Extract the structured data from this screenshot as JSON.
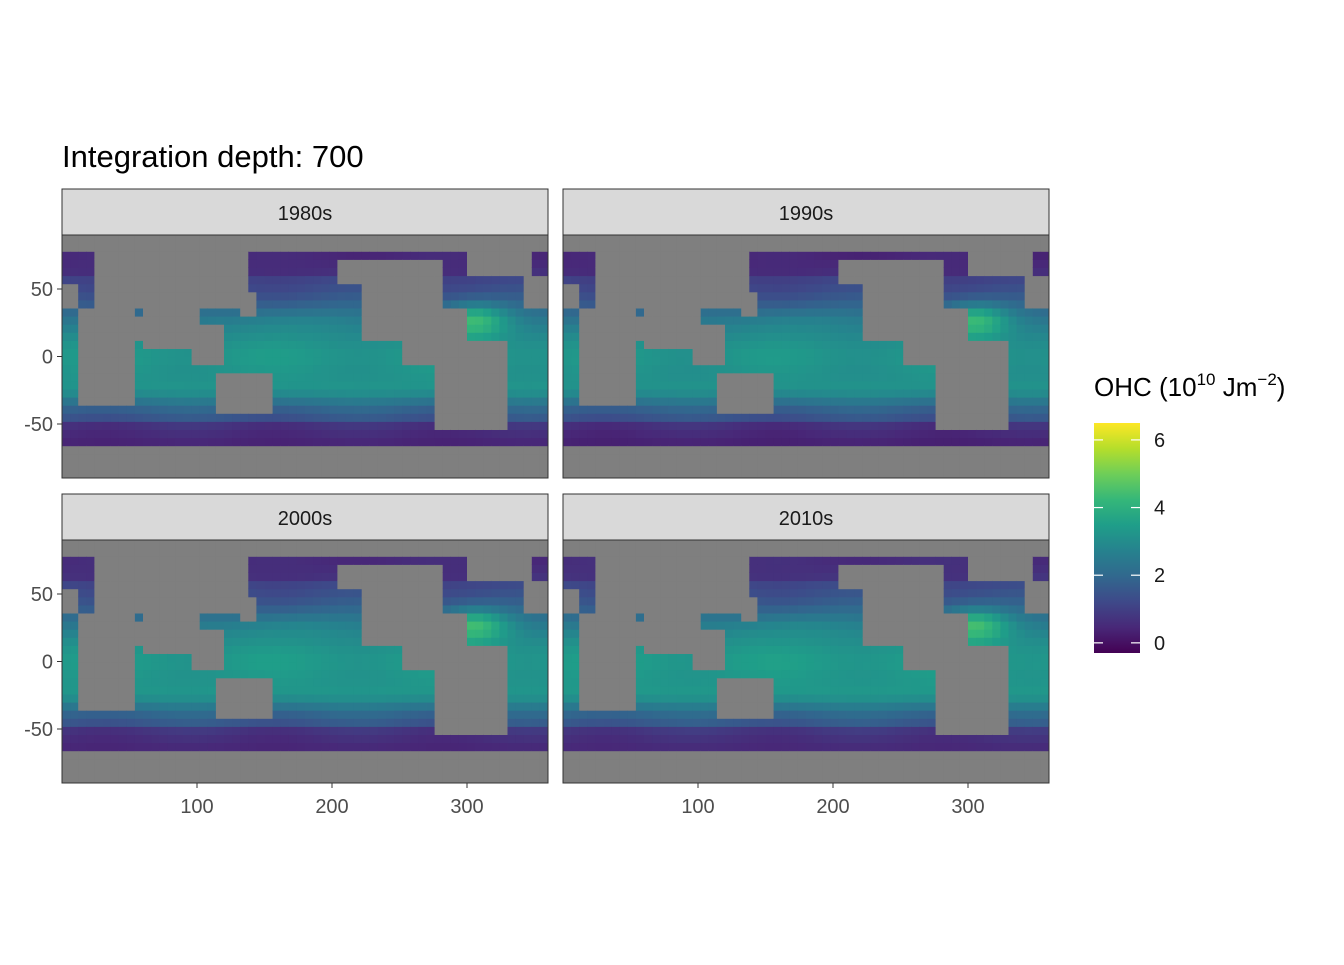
{
  "chart_data": {
    "type": "heatmap",
    "title": "Integration depth: 700",
    "xlabel": "",
    "ylabel": "",
    "xlim": [
      0,
      360
    ],
    "ylim": [
      -90,
      90
    ],
    "x_ticks": [
      100,
      200,
      300
    ],
    "y_ticks": [
      50,
      0,
      -50
    ],
    "x_tick_labels": [
      "100",
      "200",
      "300"
    ],
    "y_tick_labels": [
      "50",
      "0",
      "-50"
    ],
    "grid": false,
    "facets": [
      {
        "label": "1980s",
        "offset": 0.0
      },
      {
        "label": "1990s",
        "offset": -0.05
      },
      {
        "label": "2000s",
        "offset": 0.05
      },
      {
        "label": "2010s",
        "offset": 0.1
      }
    ],
    "colorbar": {
      "title_main": "OHC (10",
      "title_exp1": "10",
      "title_unit": " Jm",
      "title_exp2": "−2",
      "title_close": ")",
      "min": -0.3,
      "max": 6.5,
      "ticks": [
        0,
        2,
        4,
        6
      ],
      "tick_labels": [
        "0",
        "2",
        "4",
        "6"
      ],
      "palette": "viridis"
    },
    "land_color": "#7f7f7f",
    "panel_strip_color": "#d9d9d9"
  }
}
